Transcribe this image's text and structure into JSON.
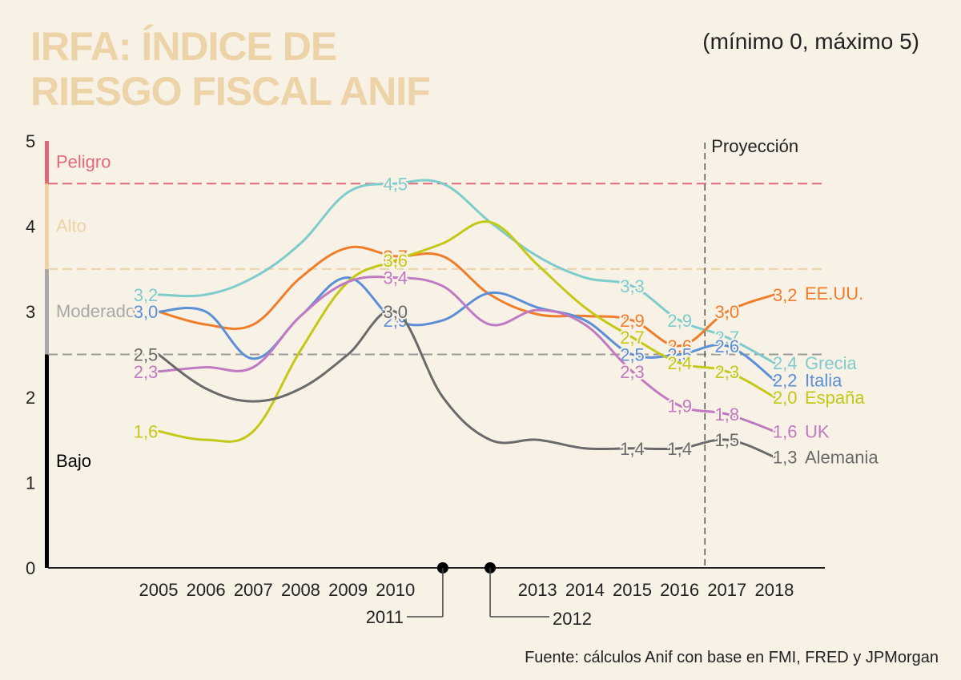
{
  "title": {
    "line1": "IRFA: ÍNDICE DE",
    "line2": "RIESGO FISCAL ANIF",
    "color": "#ecd3a8"
  },
  "subtitle": "(mínimo 0, máximo 5)",
  "source": "Fuente: cálculos Anif con base en FMI, FRED y JPMorgan",
  "chart_data": {
    "type": "line",
    "title": "IRFA: ÍNDICE DE RIESGO FISCAL ANIF",
    "subtitle": "(mínimo 0, máximo 5)",
    "ylim": [
      0,
      5
    ],
    "yticks": [
      "0",
      "1",
      "2",
      "3",
      "4",
      "5"
    ],
    "x": [
      2005,
      2006,
      2007,
      2008,
      2009,
      2010,
      2011,
      2012,
      2013,
      2014,
      2015,
      2016,
      2017,
      2018
    ],
    "axis_labels": [
      "2005",
      "2006",
      "2007",
      "2008",
      "2009",
      "2010",
      "",
      "",
      "2013",
      "2014",
      "2015",
      "2016",
      "2017",
      "2018"
    ],
    "callouts": [
      {
        "year": 2011,
        "label": "2011"
      },
      {
        "year": 2012,
        "label": "2012"
      }
    ],
    "projection": {
      "start_after": 2016,
      "label": "Proyección"
    },
    "zones": [
      {
        "name": "Bajo",
        "from": 0,
        "to": 2.5,
        "color": "#000000",
        "line_color": null
      },
      {
        "name": "Moderado",
        "from": 2.5,
        "to": 3.5,
        "color": "#a8a8a8",
        "line_color": "#9a9a9a"
      },
      {
        "name": "Alto",
        "from": 3.5,
        "to": 4.5,
        "color": "#ecd3a8",
        "line_color": "#ecd3a8"
      },
      {
        "name": "Peligro",
        "from": 4.5,
        "to": 5,
        "color": "#e06a78",
        "line_color": "#e06a78"
      }
    ],
    "series": [
      {
        "name": "Grecia",
        "color": "#7ecccc",
        "values": [
          3.2,
          3.2,
          3.4,
          3.8,
          4.4,
          4.5,
          4.5,
          4.05,
          3.65,
          3.4,
          3.3,
          2.9,
          2.7,
          2.4
        ],
        "labels": [
          {
            "year": 2005,
            "text": "3,2"
          },
          {
            "year": 2010,
            "text": "4,5"
          },
          {
            "year": 2015,
            "text": "3,3"
          },
          {
            "year": 2016,
            "text": "2,9"
          },
          {
            "year": 2017,
            "text": "2,7"
          },
          {
            "year": 2018,
            "text": "2,4"
          }
        ]
      },
      {
        "name": "EE.UU.",
        "color": "#ef7d2a",
        "values": [
          3.0,
          2.85,
          2.85,
          3.4,
          3.75,
          3.65,
          3.65,
          3.2,
          2.97,
          2.95,
          2.9,
          2.6,
          3.0,
          3.2
        ],
        "labels": [
          {
            "year": 2005,
            "text": "3,0"
          },
          {
            "year": 2010,
            "text": "3,7"
          },
          {
            "year": 2015,
            "text": "2,9"
          },
          {
            "year": 2016,
            "text": "2,6"
          },
          {
            "year": 2017,
            "text": "3,0"
          },
          {
            "year": 2018,
            "text": "3,2"
          }
        ]
      },
      {
        "name": "Italia",
        "color": "#5b8fd6",
        "values": [
          3.0,
          3.0,
          2.45,
          2.95,
          3.4,
          2.9,
          2.9,
          3.22,
          3.05,
          2.9,
          2.5,
          2.5,
          2.6,
          2.2
        ],
        "labels": [
          {
            "year": 2005,
            "text": "3,0"
          },
          {
            "year": 2010,
            "text": "2,9"
          },
          {
            "year": 2015,
            "text": "2,5"
          },
          {
            "year": 2016,
            "text": "2,5"
          },
          {
            "year": 2017,
            "text": "2,6"
          },
          {
            "year": 2018,
            "text": "2,2"
          }
        ]
      },
      {
        "name": "España",
        "color": "#c4c816",
        "values": [
          1.6,
          1.5,
          1.6,
          2.55,
          3.35,
          3.6,
          3.8,
          4.05,
          3.55,
          3.05,
          2.7,
          2.4,
          2.3,
          2.0
        ],
        "labels": [
          {
            "year": 2005,
            "text": "1,6"
          },
          {
            "year": 2010,
            "text": "3,6"
          },
          {
            "year": 2015,
            "text": "2,7"
          },
          {
            "year": 2016,
            "text": "2,4"
          },
          {
            "year": 2017,
            "text": "2,3"
          },
          {
            "year": 2018,
            "text": "2,0"
          }
        ]
      },
      {
        "name": "UK",
        "color": "#c07ac2",
        "values": [
          2.3,
          2.35,
          2.35,
          2.95,
          3.35,
          3.4,
          3.3,
          2.85,
          3.02,
          2.85,
          2.3,
          1.9,
          1.8,
          1.6
        ],
        "labels": [
          {
            "year": 2005,
            "text": "2,3"
          },
          {
            "year": 2010,
            "text": "3,4"
          },
          {
            "year": 2015,
            "text": "2,3"
          },
          {
            "year": 2016,
            "text": "1,9"
          },
          {
            "year": 2017,
            "text": "1,8"
          },
          {
            "year": 2018,
            "text": "1,6"
          }
        ]
      },
      {
        "name": "Alemania",
        "color": "#6a6a6a",
        "values": [
          2.5,
          2.1,
          1.95,
          2.1,
          2.5,
          3.0,
          2.0,
          1.5,
          1.5,
          1.4,
          1.4,
          1.4,
          1.5,
          1.3
        ],
        "labels": [
          {
            "year": 2005,
            "text": "2,5"
          },
          {
            "year": 2010,
            "text": "3,0"
          },
          {
            "year": 2015,
            "text": "1,4"
          },
          {
            "year": 2016,
            "text": "1,4"
          },
          {
            "year": 2017,
            "text": "1,5"
          },
          {
            "year": 2018,
            "text": "1,3"
          }
        ]
      }
    ]
  }
}
